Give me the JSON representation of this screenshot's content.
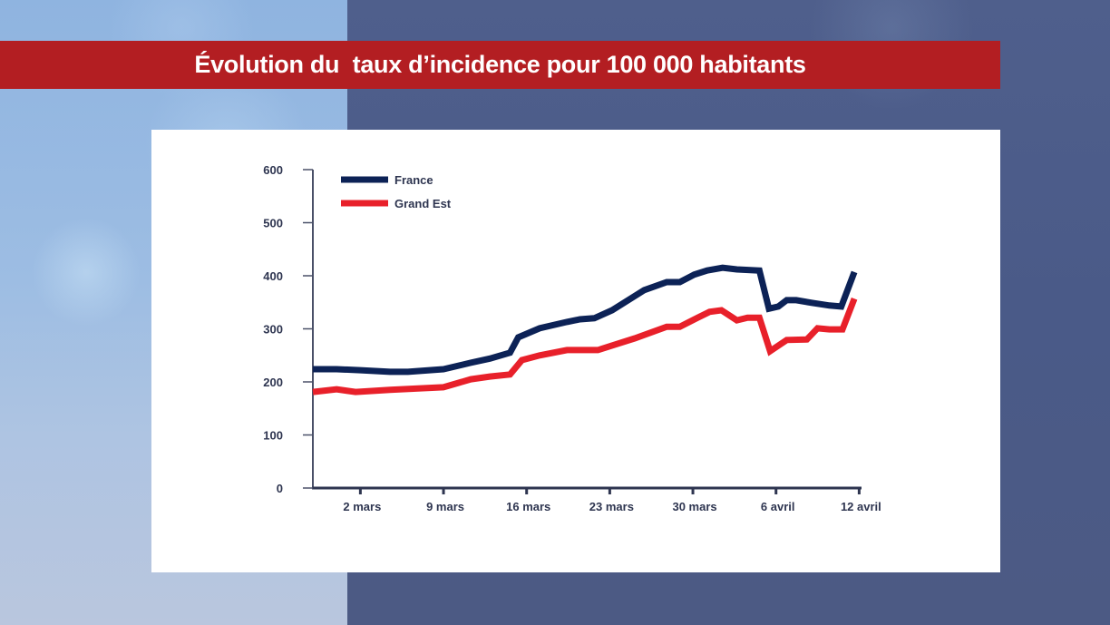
{
  "title": "Évolution du  taux d’incidence pour 100 000 habitants",
  "colors": {
    "title_bar": "#b31e22",
    "france": "#0c2256",
    "grand_est": "#e8202a",
    "axis": "#4a5068"
  },
  "chart_data": {
    "type": "line",
    "title": "Évolution du  taux d’incidence pour 100 000 habitants",
    "xlabel": "",
    "ylabel": "",
    "xlim": [
      0,
      46.2
    ],
    "ylim": [
      0,
      600
    ],
    "grid": false,
    "legend_position": "top-left",
    "y_ticks": [
      {
        "value": 0,
        "label": "0"
      },
      {
        "value": 100,
        "label": "100"
      },
      {
        "value": 200,
        "label": "200"
      },
      {
        "value": 300,
        "label": "300"
      },
      {
        "value": 400,
        "label": "400"
      },
      {
        "value": 500,
        "label": "500"
      },
      {
        "value": 600,
        "label": "600"
      }
    ],
    "x_ticks": [
      {
        "value": 4,
        "label": "2 mars"
      },
      {
        "value": 11,
        "label": "9 mars"
      },
      {
        "value": 18,
        "label": "16 mars"
      },
      {
        "value": 25,
        "label": "23 mars"
      },
      {
        "value": 32,
        "label": "30 mars"
      },
      {
        "value": 39,
        "label": "6 avril"
      },
      {
        "value": 46,
        "label": "12 avril"
      }
    ],
    "x_unit_note": "days since 27 February",
    "series": [
      {
        "name": "France",
        "color": "#0c2256",
        "x": [
          0,
          2,
          4,
          6.5,
          8,
          11,
          13.3,
          14.9,
          16.6,
          17.3,
          19.1,
          21.4,
          22.5,
          23.7,
          25.2,
          27.9,
          29.8,
          30.9,
          32.1,
          33.2,
          34.5,
          35.7,
          37.6,
          38.4,
          39.2,
          39.9,
          40.7,
          42,
          43.5,
          44.5,
          45.6
        ],
        "values": [
          224,
          224,
          222,
          219,
          219,
          224,
          236,
          244,
          255,
          284,
          301,
          313,
          318,
          320,
          335,
          373,
          388,
          388,
          402,
          410,
          415,
          412,
          410,
          338,
          342,
          354,
          354,
          349,
          344,
          342,
          407
        ]
      },
      {
        "name": "Grand Est",
        "color": "#e8202a",
        "x": [
          0,
          2,
          3.6,
          6.5,
          11,
          13.3,
          14.9,
          16.6,
          17.6,
          19.1,
          21.4,
          24,
          27.1,
          29.8,
          30.9,
          32.4,
          33.4,
          34.4,
          35.7,
          36.6,
          37.6,
          38.5,
          39.9,
          41.6,
          42.5,
          43.5,
          44.6,
          45.6
        ],
        "values": [
          181,
          186,
          181,
          185,
          190,
          205,
          210,
          214,
          241,
          250,
          260,
          260,
          282,
          304,
          304,
          321,
          332,
          335,
          316,
          321,
          321,
          258,
          279,
          280,
          301,
          299,
          299,
          357
        ]
      }
    ]
  }
}
